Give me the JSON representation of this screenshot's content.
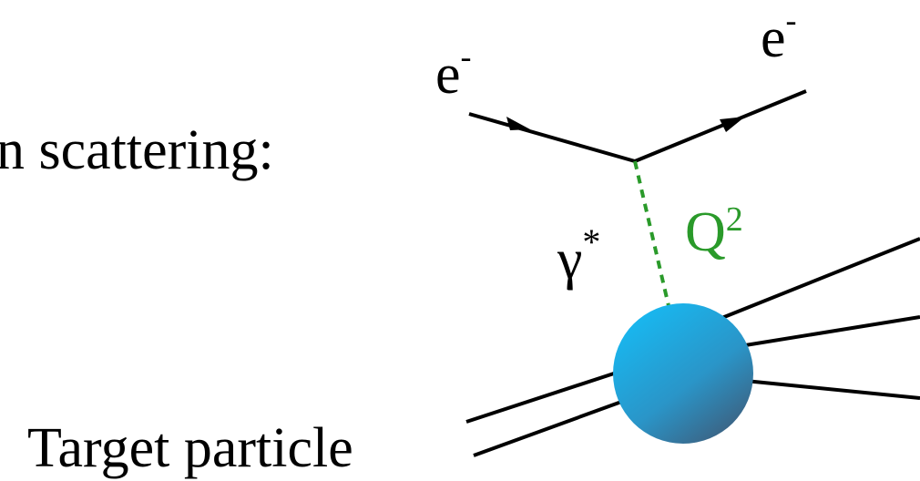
{
  "heading": "n scattering:",
  "incoming_electron": {
    "base": "e",
    "sup": "-"
  },
  "outgoing_electron": {
    "base": "e",
    "sup": "-"
  },
  "photon": {
    "base": "γ",
    "sup": "*"
  },
  "momentum_transfer": {
    "base": "Q",
    "sup": "2"
  },
  "target_label": "Target particle"
}
